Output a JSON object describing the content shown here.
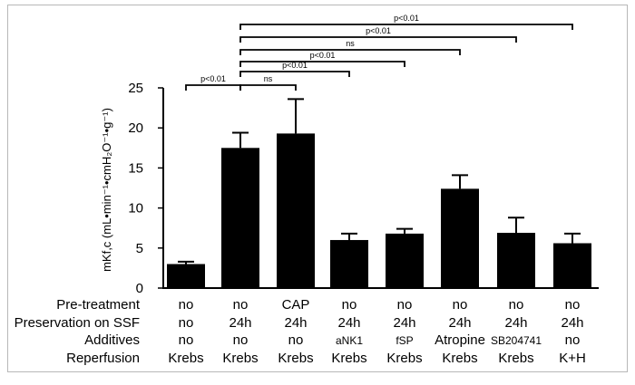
{
  "chart_data": {
    "type": "bar",
    "categories": [
      "Krebs",
      "24h Krebs",
      "CAP",
      "aNK1",
      "fSP",
      "Atropine",
      "SB204741",
      "K+H"
    ],
    "values": [
      3.0,
      17.5,
      19.3,
      6.0,
      6.8,
      12.4,
      6.9,
      5.6
    ],
    "errors": [
      0.3,
      1.9,
      4.3,
      0.8,
      0.6,
      1.7,
      1.9,
      1.2
    ],
    "ylim": [
      0,
      25
    ],
    "yticks": [
      "0",
      "5",
      "10",
      "15",
      "20",
      "25"
    ],
    "ylabel": "mKf,c (mL•min⁻¹•cmH₂O⁻¹•g⁻¹)",
    "comparisons": [
      {
        "from": 0,
        "to": 1,
        "label": "p<0.01"
      },
      {
        "from": 1,
        "to": 2,
        "label": "ns"
      },
      {
        "from": 1,
        "to": 3,
        "label": "p<0.01"
      },
      {
        "from": 1,
        "to": 4,
        "label": "p<0.01"
      },
      {
        "from": 1,
        "to": 5,
        "label": "ns"
      },
      {
        "from": 1,
        "to": 6,
        "label": "p<0.01"
      },
      {
        "from": 1,
        "to": 7,
        "label": "p<0.01"
      }
    ],
    "table": {
      "row_labels": [
        "Pre-treatment",
        "Preservation on SSF",
        "Additives",
        "Reperfusion"
      ],
      "rows": [
        [
          "no",
          "no",
          "CAP",
          "no",
          "no",
          "no",
          "no",
          "no"
        ],
        [
          "no",
          "24h",
          "24h",
          "24h",
          "24h",
          "24h",
          "24h",
          "24h"
        ],
        [
          "no",
          "no",
          "no",
          "aNK1",
          "fSP",
          "Atropine",
          "SB204741",
          "no"
        ],
        [
          "Krebs",
          "Krebs",
          "Krebs",
          "Krebs",
          "Krebs",
          "Krebs",
          "Krebs",
          "K+H"
        ]
      ]
    },
    "colors": {
      "bar": "#000000",
      "axis": "#000000"
    }
  }
}
